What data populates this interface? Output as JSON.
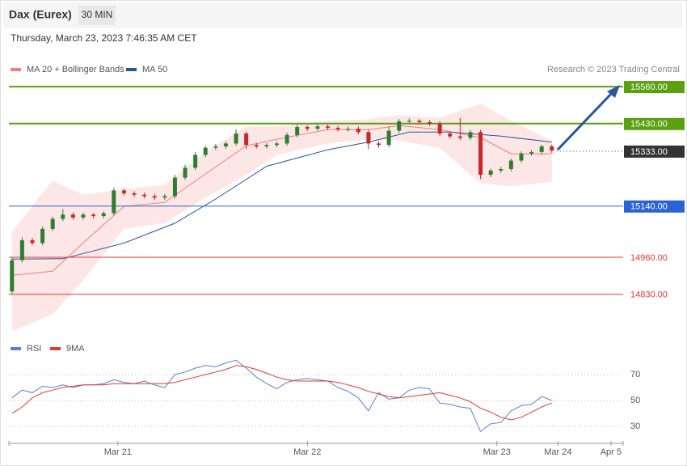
{
  "header": {
    "title": "Dax (Eurex)",
    "interval": "30 MIN",
    "timestamp": "Thursday, March 23, 2023 7:46:35 AM CET",
    "credit": "Research © 2023 Trading Central"
  },
  "chart_data": [
    {
      "type": "candlestick",
      "xlim": [
        -0.3,
        60
      ],
      "ylim": [
        14690,
        15600
      ],
      "up_color": "#2f7d32",
      "down_color": "#c62828",
      "open": [
        14840,
        14950,
        15020,
        15010,
        15060,
        15095,
        15110,
        15100,
        15110,
        15105,
        15115,
        15195,
        15185,
        15180,
        15175,
        15170,
        15175,
        15240,
        15275,
        15320,
        15345,
        15350,
        15360,
        15395,
        15355,
        15350,
        15355,
        15360,
        15390,
        15418,
        15412,
        15420,
        15415,
        15410,
        15412,
        15400,
        15360,
        15355,
        15405,
        15438,
        15440,
        15435,
        15430,
        15395,
        15385,
        15380,
        15400,
        15250,
        15265,
        15270,
        15300,
        15325,
        15330,
        15350
      ],
      "high": [
        14960,
        15030,
        15028,
        15068,
        15103,
        15130,
        15118,
        15118,
        15116,
        15122,
        15205,
        15202,
        15192,
        15188,
        15182,
        15183,
        15250,
        15285,
        15330,
        15352,
        15358,
        15368,
        15410,
        15402,
        15362,
        15362,
        15368,
        15398,
        15426,
        15424,
        15428,
        15426,
        15422,
        15420,
        15420,
        15408,
        15368,
        15420,
        15446,
        15448,
        15446,
        15442,
        15438,
        15402,
        15450,
        15408,
        15408,
        15272,
        15278,
        15307,
        15332,
        15337,
        15356,
        15356
      ],
      "low": [
        14830,
        14942,
        15002,
        15002,
        15052,
        15087,
        15092,
        15092,
        15097,
        15097,
        15107,
        15177,
        15172,
        15167,
        15162,
        15162,
        15167,
        15232,
        15267,
        15312,
        15337,
        15342,
        15352,
        15340,
        15342,
        15342,
        15347,
        15352,
        15382,
        15404,
        15405,
        15407,
        15402,
        15402,
        15392,
        15340,
        15345,
        15347,
        15397,
        15430,
        15427,
        15422,
        15387,
        15377,
        15372,
        15372,
        15235,
        15242,
        15257,
        15262,
        15292,
        15317,
        15322,
        15327
      ],
      "close": [
        14950,
        15020,
        15010,
        15060,
        15095,
        15110,
        15100,
        15110,
        15105,
        15115,
        15195,
        15185,
        15180,
        15175,
        15170,
        15175,
        15240,
        15275,
        15320,
        15345,
        15350,
        15360,
        15395,
        15355,
        15350,
        15355,
        15360,
        15390,
        15418,
        15412,
        15420,
        15415,
        15410,
        15412,
        15400,
        15360,
        15355,
        15405,
        15438,
        15440,
        15435,
        15430,
        15395,
        15385,
        15380,
        15400,
        15250,
        15265,
        15270,
        15300,
        15325,
        15330,
        15350,
        15335
      ],
      "overlays": [
        {
          "name": "MA 20 + Bollinger Bands",
          "color": "#f08080",
          "band_color": "#fde0e0",
          "x": [
            0,
            4,
            7,
            11,
            15,
            19,
            23,
            26,
            31,
            35,
            38,
            42,
            46,
            49,
            53
          ],
          "values": [
            14897,
            14911,
            15011,
            15139,
            15153,
            15253,
            15352,
            15375,
            15409,
            15409,
            15423,
            15409,
            15381,
            15324,
            15324
          ],
          "upper": [
            15050,
            15230,
            15180,
            15200,
            15215,
            15330,
            15420,
            15420,
            15440,
            15445,
            15460,
            15450,
            15500,
            15440,
            15370
          ],
          "lower": [
            14700,
            14760,
            14880,
            15060,
            15080,
            15170,
            15250,
            15320,
            15360,
            15375,
            15370,
            15345,
            15220,
            15210,
            15225
          ]
        },
        {
          "name": "MA 50",
          "color": "#2a5698",
          "x": [
            0,
            5,
            11,
            16,
            20,
            25,
            31,
            35,
            39,
            43,
            48,
            53
          ],
          "values": [
            14954,
            14955,
            15010,
            15080,
            15165,
            15280,
            15338,
            15365,
            15400,
            15400,
            15386,
            15365
          ]
        }
      ],
      "levels": [
        {
          "value": 15560,
          "label": "15560.00",
          "color": "#5aa00f",
          "box": true
        },
        {
          "value": 15430,
          "label": "15430.00",
          "color": "#5aa00f",
          "box": true
        },
        {
          "value": 15333,
          "label": "15333.00",
          "color": "#333333",
          "box": true,
          "dotted": true
        },
        {
          "value": 15140,
          "label": "15140.00",
          "color": "#2b63d6",
          "box": true
        },
        {
          "value": 14960,
          "label": "14960.00",
          "color": "#e53935",
          "box": false
        },
        {
          "value": 14830,
          "label": "14830.00",
          "color": "#e53935",
          "box": false
        }
      ]
    },
    {
      "type": "line",
      "xlim": [
        -0.3,
        60
      ],
      "ylim": [
        22,
        84
      ],
      "yticks": [
        30,
        50,
        70
      ],
      "xticks": [
        {
          "value": 10.4,
          "label": "Mar 21"
        },
        {
          "value": 29,
          "label": "Mar 22"
        },
        {
          "value": 47.6,
          "label": "Mar 23"
        },
        {
          "value": 53.6,
          "label": "Mar 24"
        },
        {
          "value": 58.8,
          "label": "Apr 5"
        }
      ],
      "series": [
        {
          "name": "RSI",
          "color": "#5b7fd6",
          "values": [
            52,
            58,
            56,
            61,
            60,
            62,
            60,
            62,
            62,
            63,
            66,
            64,
            63,
            65,
            62,
            60,
            70,
            72,
            75,
            77,
            76,
            79,
            81,
            75,
            68,
            63,
            59,
            64,
            66,
            67,
            66,
            65,
            60,
            57,
            52,
            42,
            56,
            51,
            52,
            58,
            60,
            59,
            48,
            47,
            45,
            44,
            26,
            32,
            33,
            42,
            46,
            47,
            53,
            50
          ]
        },
        {
          "name": "9MA",
          "color": "#e53935",
          "values": [
            40,
            45,
            52,
            56,
            58,
            60,
            61,
            62,
            62,
            62,
            63,
            63,
            63,
            63,
            63,
            63,
            64,
            66,
            68,
            70,
            72,
            74,
            77,
            76,
            74,
            71,
            68,
            66,
            65,
            65,
            65,
            65,
            64,
            62,
            60,
            57,
            55,
            53,
            52,
            53,
            54,
            55,
            56,
            54,
            52,
            49,
            44,
            41,
            37,
            35,
            37,
            41,
            45,
            48
          ]
        }
      ]
    }
  ]
}
